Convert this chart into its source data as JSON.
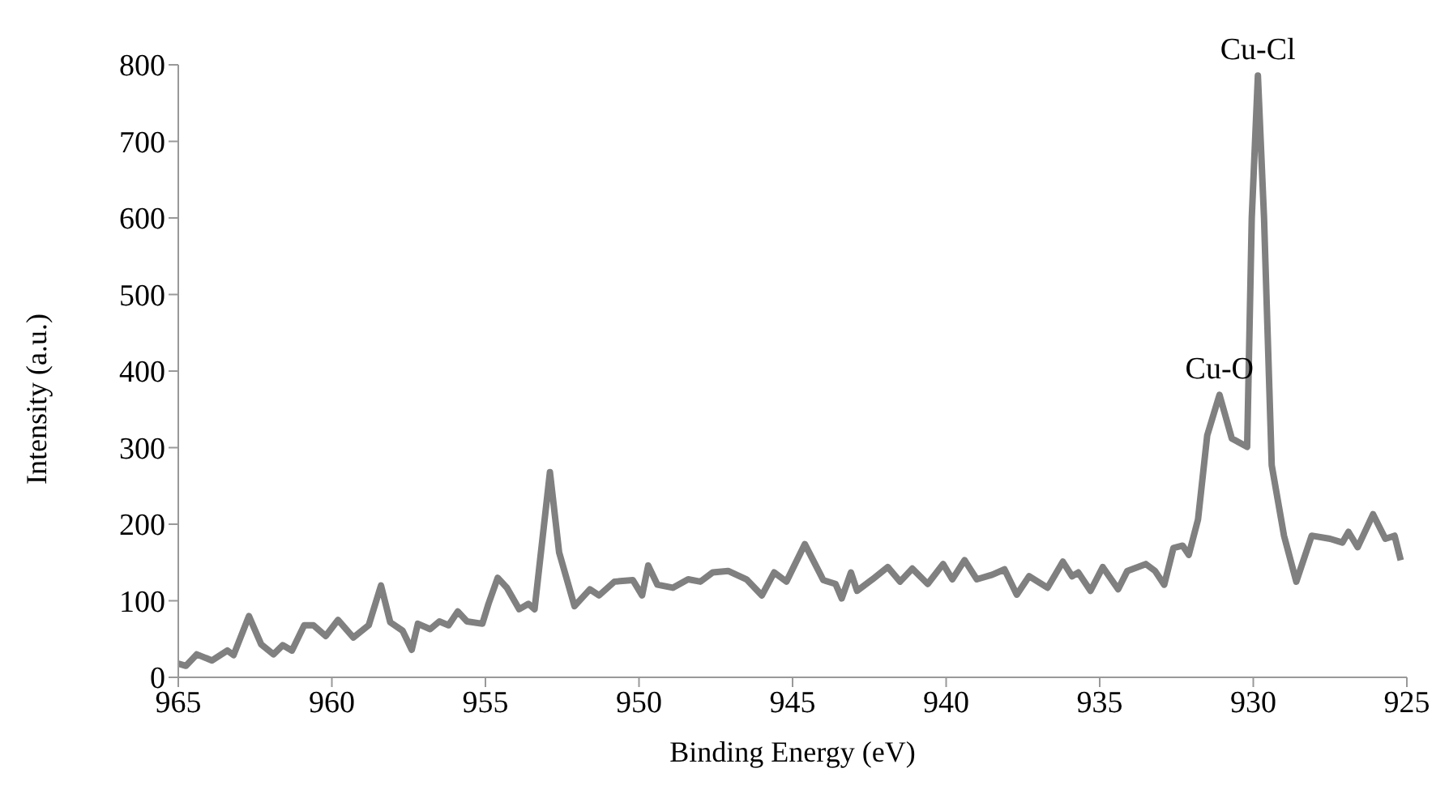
{
  "chart_data": {
    "type": "line",
    "xlabel": "Binding Energy (eV)",
    "ylabel": "Intensity (a.u.)",
    "xlim": [
      965,
      925
    ],
    "xticks": [
      965,
      960,
      955,
      950,
      945,
      940,
      935,
      930,
      925
    ],
    "ylim": [
      0,
      800
    ],
    "yticks": [
      0,
      100,
      200,
      300,
      400,
      500,
      600,
      700,
      800
    ],
    "grid": false,
    "legend": false,
    "marker": "none",
    "line_style": "solid",
    "annotations": [
      {
        "text": "Cu-O",
        "x": 931.1,
        "y": 369
      },
      {
        "text": "Cu-Cl",
        "x": 929.85,
        "y": 786
      }
    ],
    "series": [
      {
        "color": "#808080",
        "x": [
          965,
          964.75,
          964.4,
          963.9,
          963.4,
          963.2,
          962.7,
          962.3,
          961.9,
          961.6,
          961.3,
          960.9,
          960.6,
          960.2,
          959.8,
          959.3,
          958.8,
          958.4,
          958.1,
          957.7,
          957.4,
          957.2,
          956.8,
          956.5,
          956.2,
          955.9,
          955.6,
          955.1,
          954.9,
          954.6,
          954.3,
          953.9,
          953.6,
          953.4,
          952.9,
          952.6,
          952.1,
          951.6,
          951.3,
          950.8,
          950.2,
          949.9,
          949.7,
          949.4,
          948.9,
          948.4,
          948.0,
          947.6,
          947.1,
          946.5,
          946.0,
          945.6,
          945.2,
          944.6,
          944.0,
          943.6,
          943.4,
          943.1,
          942.9,
          942.4,
          941.9,
          941.5,
          941.1,
          940.6,
          940.1,
          939.8,
          939.4,
          939.0,
          938.5,
          938.1,
          937.7,
          937.3,
          936.7,
          936.2,
          935.9,
          935.7,
          935.3,
          934.9,
          934.4,
          934.1,
          933.5,
          933.2,
          932.9,
          932.6,
          932.3,
          932.1,
          931.8,
          931.5,
          931.1,
          930.7,
          930.2,
          930.05,
          929.85,
          929.65,
          929.4,
          929.0,
          928.6,
          928.1,
          927.5,
          927.1,
          926.9,
          926.6,
          926.1,
          925.7,
          925.4,
          925.2
        ],
        "values": [
          18,
          15,
          30,
          22,
          35,
          29,
          80,
          43,
          30,
          42,
          35,
          68,
          68,
          54,
          75,
          52,
          68,
          120,
          72,
          61,
          36,
          70,
          63,
          73,
          68,
          86,
          73,
          70,
          96,
          130,
          117,
          89,
          96,
          89,
          268,
          163,
          93,
          115,
          107,
          125,
          127,
          107,
          146,
          121,
          117,
          128,
          125,
          137,
          139,
          128,
          107,
          137,
          125,
          174,
          127,
          122,
          103,
          137,
          113,
          128,
          144,
          125,
          142,
          122,
          148,
          128,
          153,
          128,
          134,
          141,
          108,
          132,
          117,
          151,
          132,
          137,
          113,
          144,
          115,
          139,
          148,
          139,
          121,
          169,
          172,
          160,
          206,
          316,
          369,
          312,
          301,
          600,
          786,
          600,
          277,
          185,
          125,
          185,
          181,
          176,
          190,
          170,
          213,
          181,
          185,
          153
        ]
      }
    ]
  }
}
